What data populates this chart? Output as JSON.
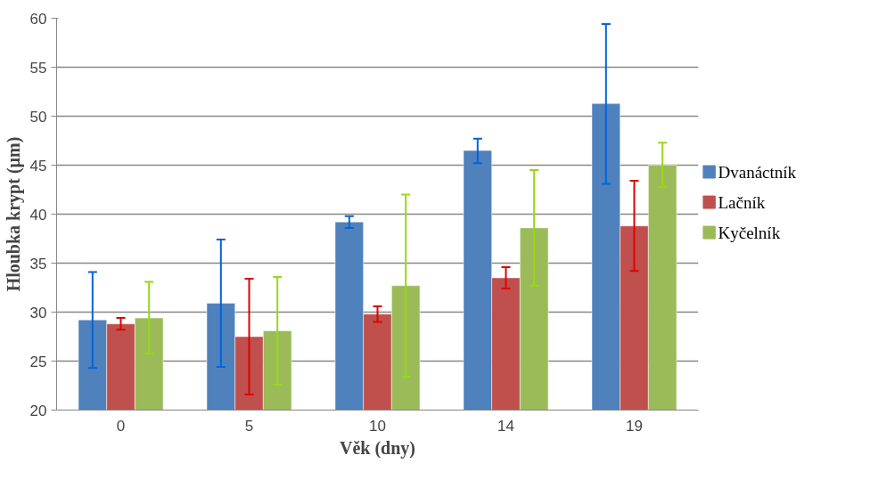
{
  "chart_data": {
    "type": "bar",
    "xlabel": "Věk (dny)",
    "ylabel": "Hloubka krypt (µm)",
    "categories": [
      "0",
      "5",
      "10",
      "14",
      "19"
    ],
    "series": [
      {
        "name": "Dvanáctník",
        "color": "#4f81bd",
        "values": [
          29.2,
          30.9,
          39.2,
          46.5,
          51.3
        ],
        "errors": [
          [
            24.3,
            34.1
          ],
          [
            24.4,
            37.4
          ],
          [
            38.6,
            39.8
          ],
          [
            45.2,
            47.7
          ],
          [
            43.1,
            59.4
          ]
        ]
      },
      {
        "name": "Lačník",
        "color": "#c0504d",
        "values": [
          28.8,
          27.5,
          29.8,
          33.5,
          38.8
        ],
        "errors": [
          [
            28.2,
            29.4
          ],
          [
            21.6,
            33.4
          ],
          [
            29.0,
            30.6
          ],
          [
            32.4,
            34.6
          ],
          [
            34.2,
            43.4
          ]
        ]
      },
      {
        "name": "Kyčelník",
        "color": "#9bbb59",
        "values": [
          29.4,
          28.1,
          32.7,
          38.6,
          45.0
        ],
        "errors": [
          [
            25.8,
            33.1
          ],
          [
            22.6,
            33.6
          ],
          [
            23.4,
            42.0
          ],
          [
            32.7,
            44.5
          ],
          [
            42.8,
            47.3
          ]
        ]
      }
    ],
    "ylim": [
      20,
      60
    ],
    "yticks": [
      20,
      25,
      30,
      35,
      40,
      45,
      50,
      55,
      60
    ],
    "grid": "y",
    "legend": "right"
  }
}
